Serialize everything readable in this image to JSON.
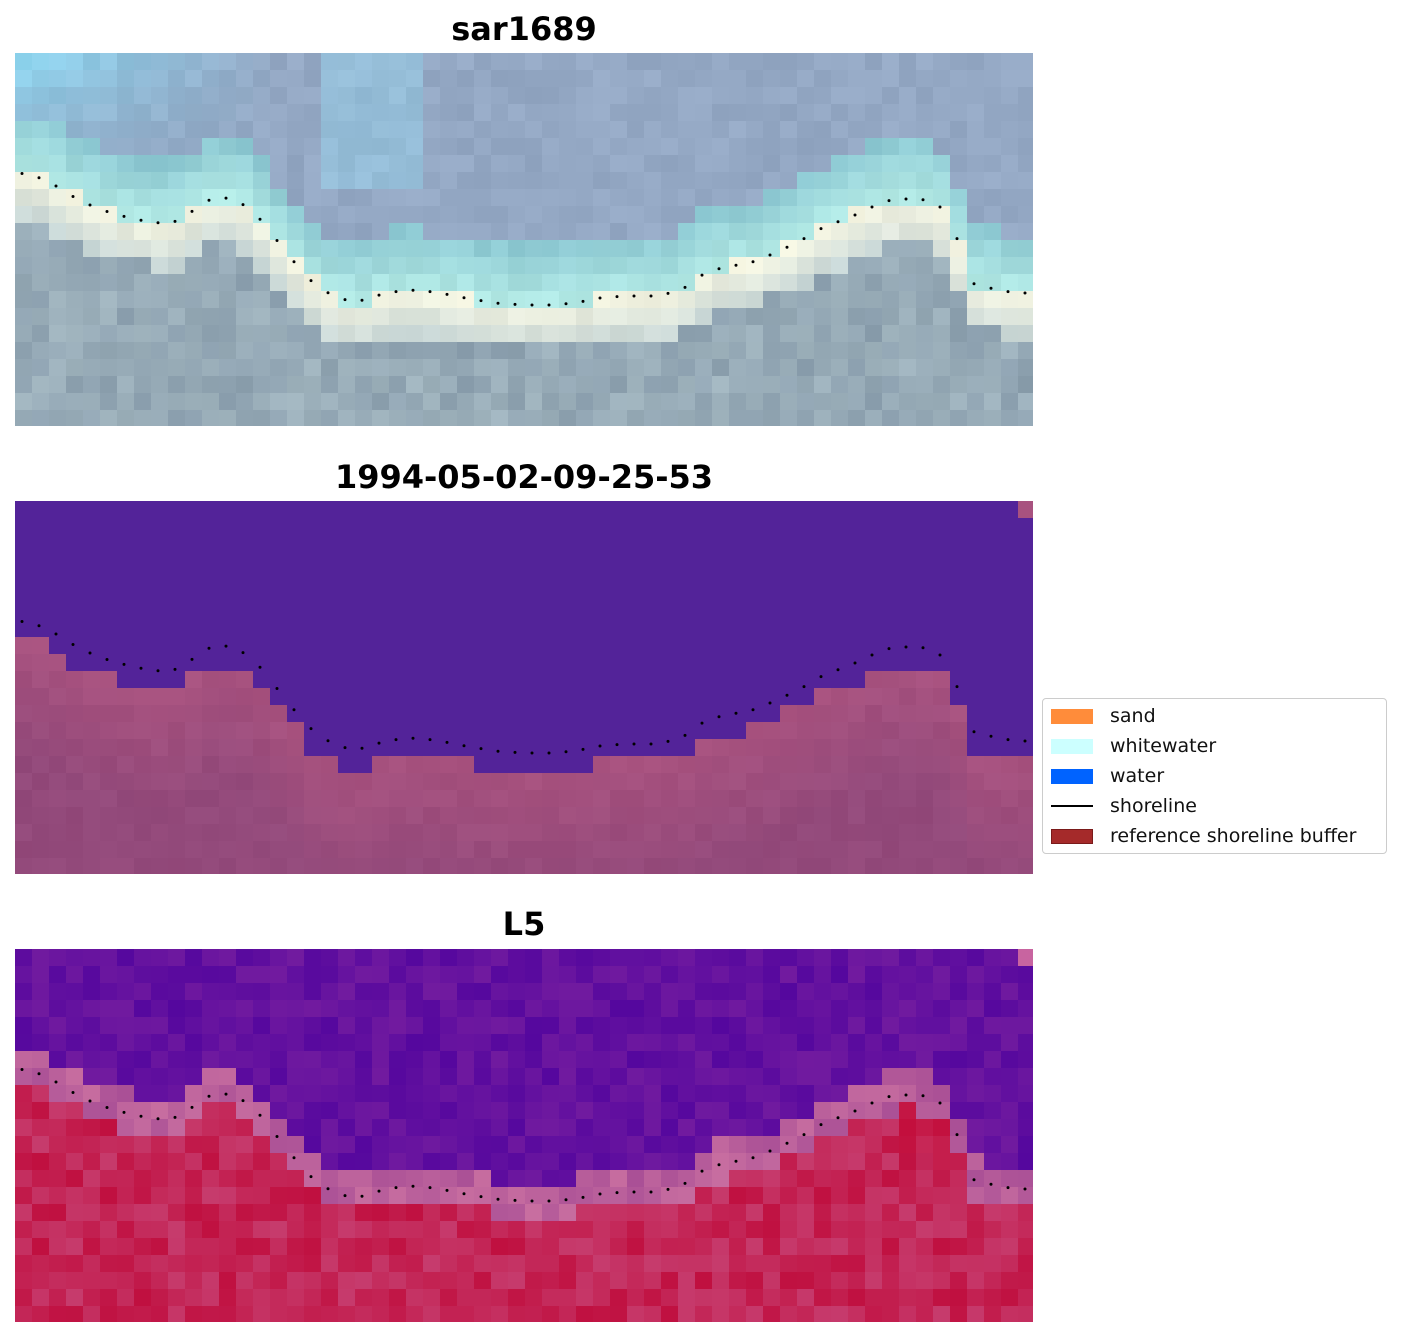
{
  "panels": [
    {
      "title": "sar1689",
      "style": "sar"
    },
    {
      "title": "1994-05-02-09-25-53",
      "style": "classified"
    },
    {
      "title": "L5",
      "style": "index"
    }
  ],
  "legend": {
    "items": [
      {
        "label": "sand",
        "color": "#ff8c3a",
        "kind": "patch"
      },
      {
        "label": "whitewater",
        "color": "#ccffff",
        "kind": "patch"
      },
      {
        "label": "water",
        "color": "#0063ff",
        "kind": "patch"
      },
      {
        "label": "shoreline",
        "color": "#000000",
        "kind": "line"
      },
      {
        "label": "reference shoreline buffer",
        "color": "#a52a2a",
        "kind": "patch"
      }
    ]
  },
  "colors": {
    "shoreline_dots": "#000000",
    "classified_water": "#532399",
    "classified_buffer": "#a8527f",
    "index_high": "#c01040",
    "index_low": "#55079e"
  }
}
